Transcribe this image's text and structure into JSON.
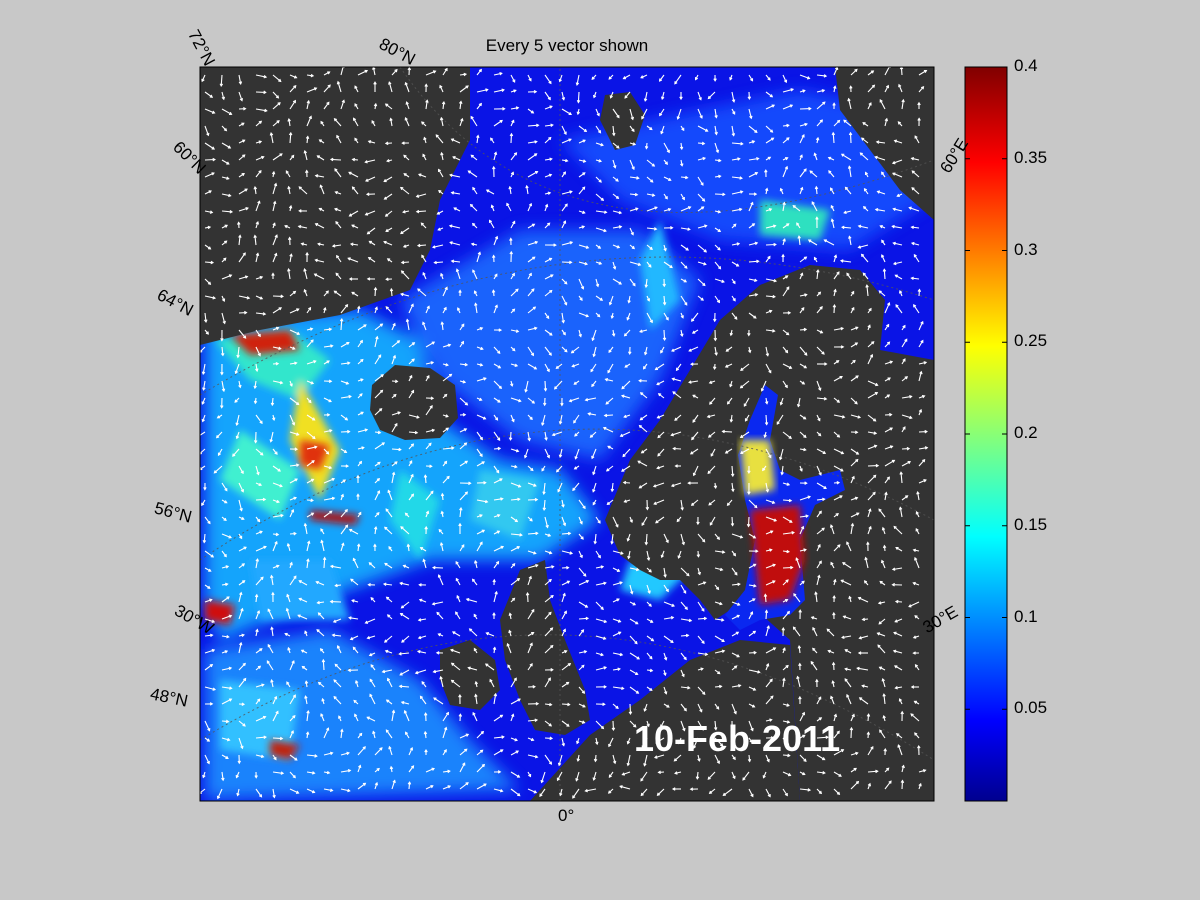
{
  "title": "Every 5 vector shown",
  "date": "10-Feb-2011",
  "lat_labels": [
    "72°N",
    "60°N",
    "64°N",
    "56°N",
    "48°N"
  ],
  "lon_labels": [
    "80°N",
    "60°E",
    "30°E",
    "30°W",
    "0°"
  ],
  "colorbar": {
    "min": 0,
    "max": 0.4,
    "colormap": "jet",
    "ticks": [
      "0.4",
      "0.35",
      "0.3",
      "0.25",
      "0.2",
      "0.15",
      "0.1",
      "0.05"
    ]
  },
  "colors": {
    "figure_bg": "#c8c8c8",
    "land": "#333333",
    "ocean_low": "#0a14e6",
    "vectors": "#ffffff"
  }
}
